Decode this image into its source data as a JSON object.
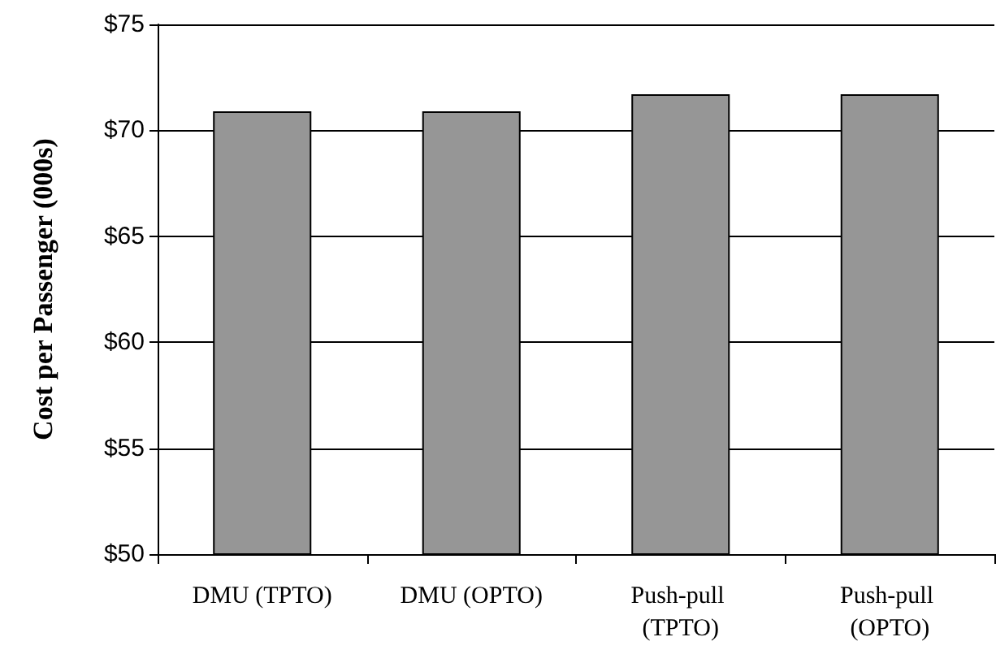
{
  "chart_data": {
    "type": "bar",
    "ylabel": "Cost per Passenger (000s)",
    "categories": [
      "DMU (TPTO)",
      "DMU (OPTO)",
      "Push-pull (TPTO)",
      "Push-pull (OPTO)"
    ],
    "values": [
      70.9,
      70.9,
      71.7,
      71.7
    ],
    "color": "#969696",
    "ylim": [
      50,
      75
    ],
    "yticks": [
      {
        "value": 50,
        "label": "$50"
      },
      {
        "value": 55,
        "label": "$55"
      },
      {
        "value": 60,
        "label": "$60"
      },
      {
        "value": 65,
        "label": "$65"
      },
      {
        "value": 70,
        "label": "$70"
      },
      {
        "value": 75,
        "label": "$75"
      }
    ],
    "grid": "y"
  }
}
